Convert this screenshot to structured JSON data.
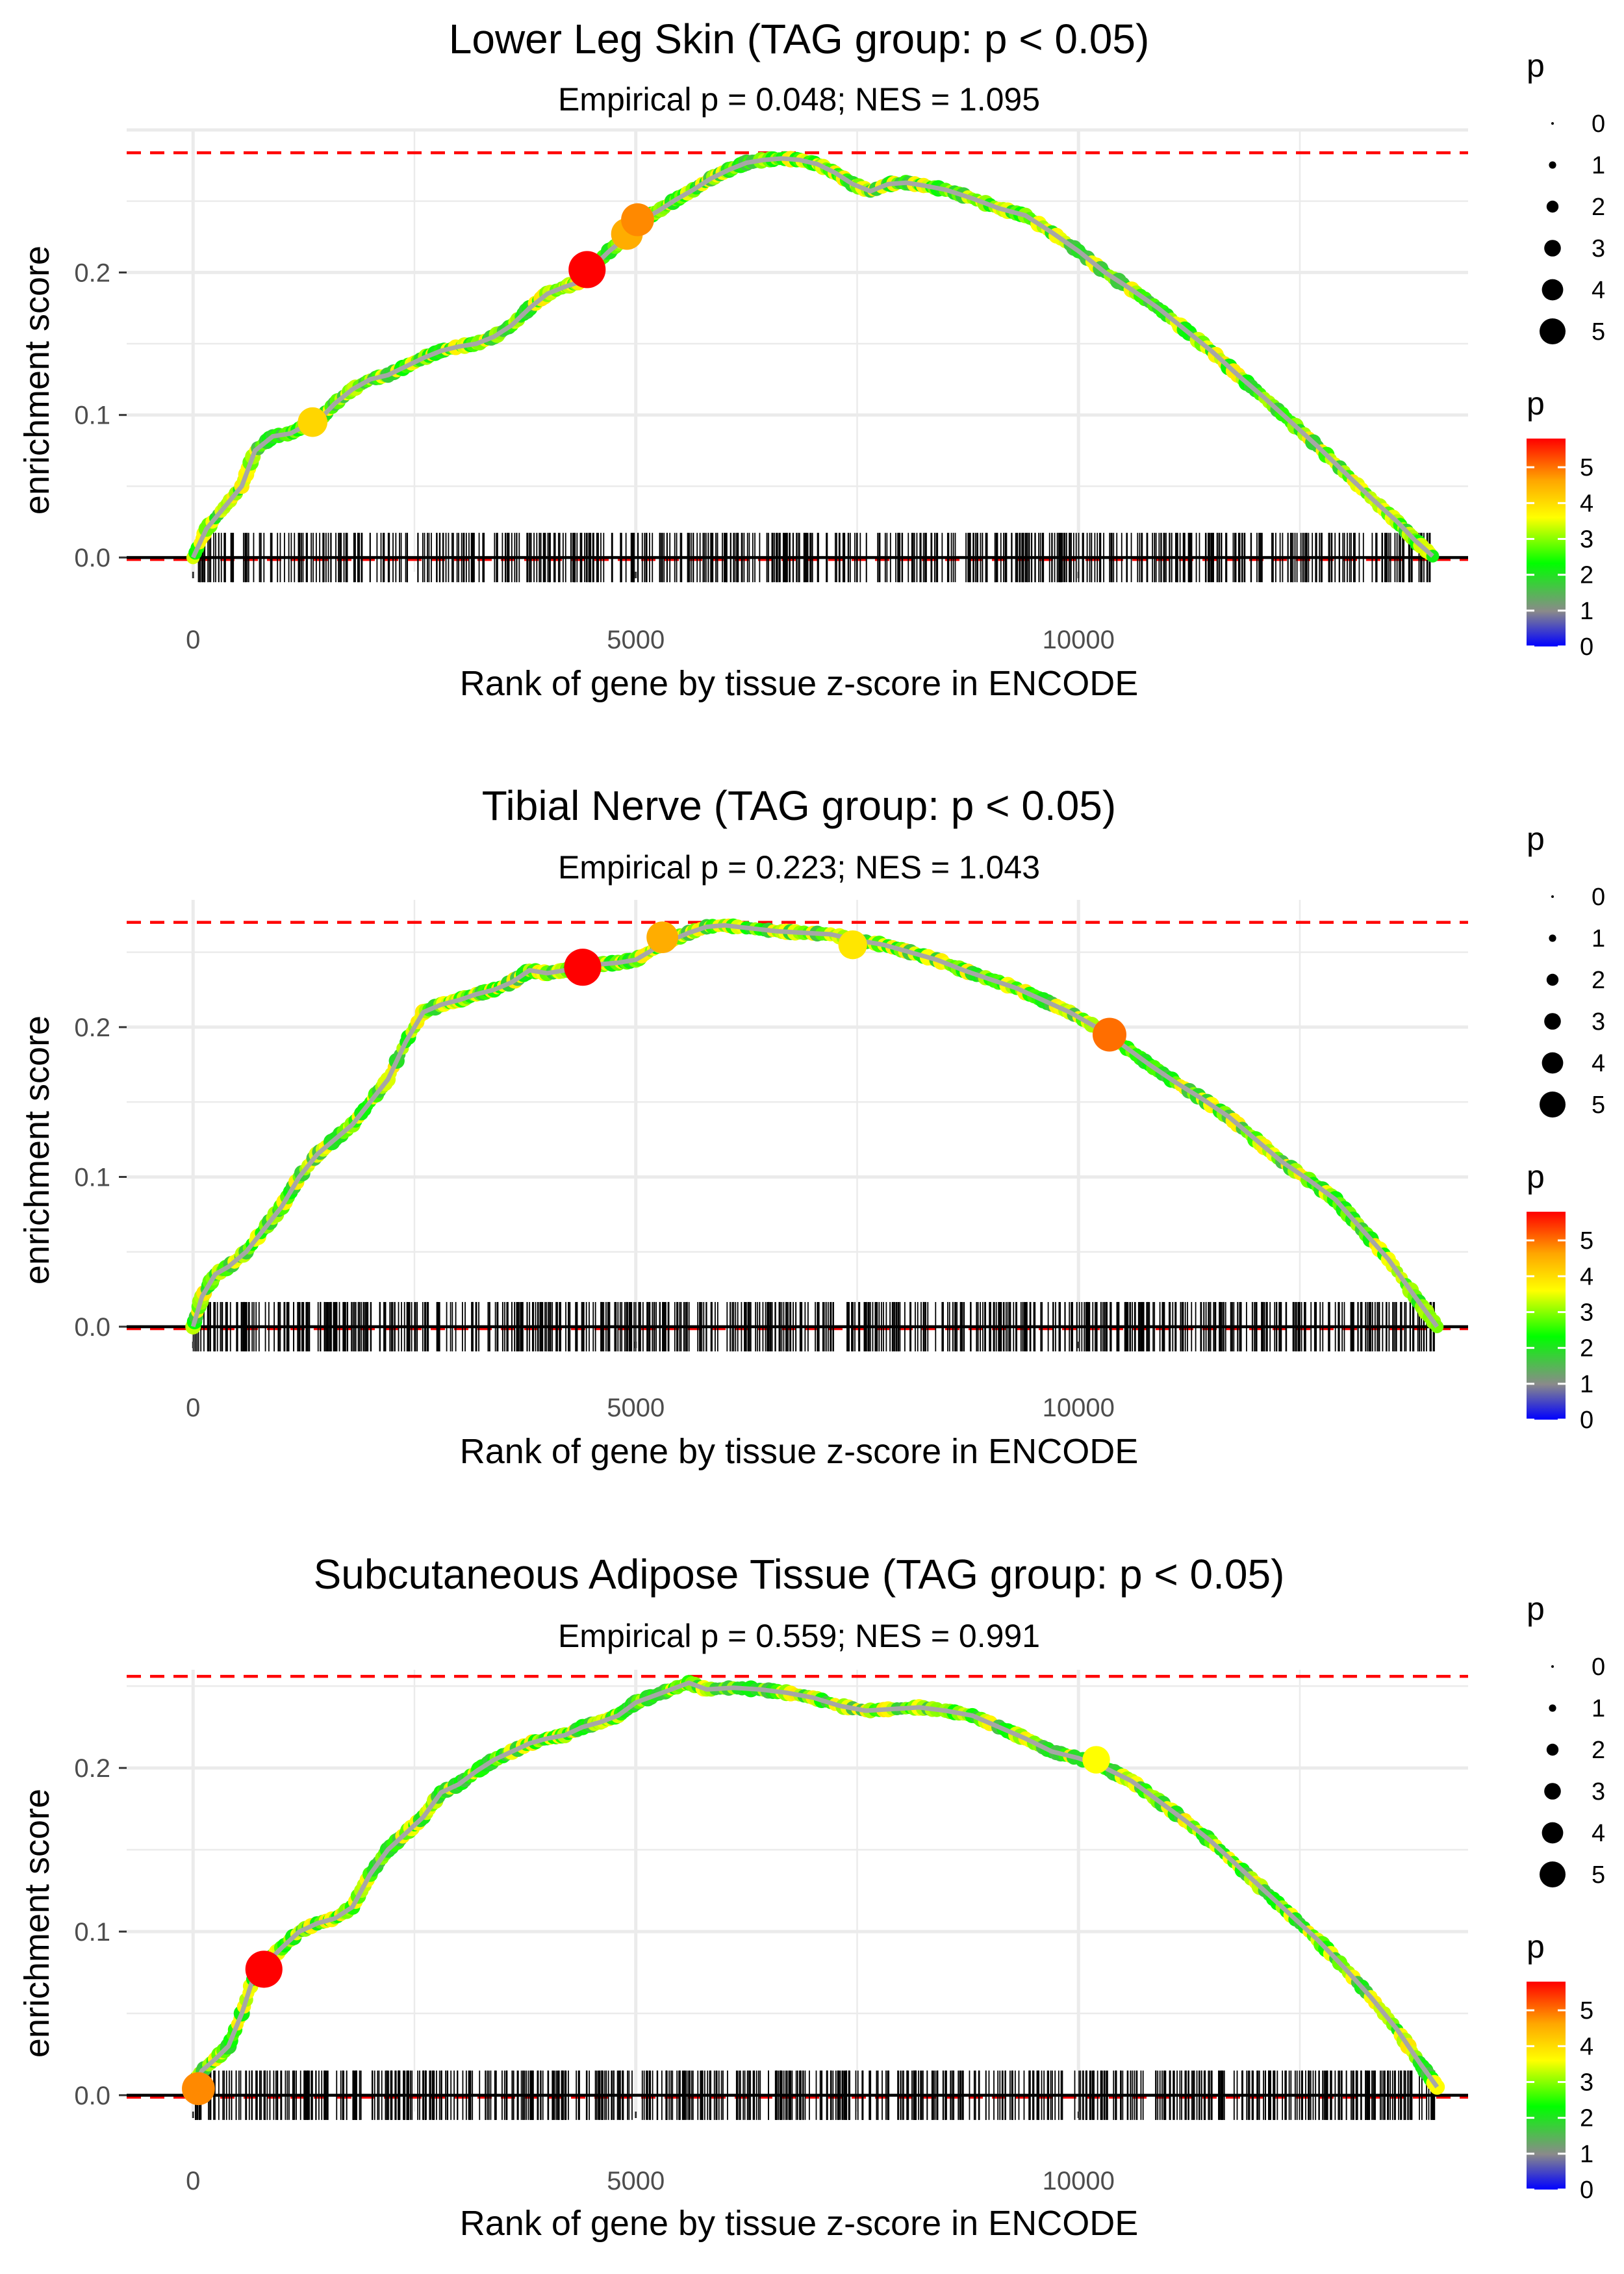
{
  "figure": {
    "xlabel": "Rank of gene by tissue z-score in ENCODE",
    "ylabel": "enrichment score",
    "xlim": [
      -750,
      14400
    ],
    "x_ticks": [
      0,
      5000,
      10000
    ],
    "y_ticks": [
      0.0,
      0.1,
      0.2
    ],
    "y_tick_labels": [
      "0.0",
      "0.1",
      "0.2"
    ],
    "colors": {
      "max_line": "#ff0000",
      "zero_line": "#000000",
      "grid": "#ebebeb",
      "curve_core": "#a6a6a6",
      "gene_ticks": "#000000"
    },
    "gradient_stops": [
      "#0000ff",
      "#8a8a8a",
      "#00ff00",
      "#ffff00",
      "#ffa500",
      "#ff0000"
    ]
  },
  "legend": {
    "size_title": "p",
    "size_levels": [
      "0",
      "1",
      "2",
      "3",
      "4",
      "5"
    ],
    "color_title": "p",
    "color_levels": [
      "5",
      "4",
      "3",
      "2",
      "1",
      "0"
    ]
  },
  "chart_data": [
    {
      "type": "line",
      "title": "Lower Leg Skin (TAG group: p < 0.05)",
      "subtitle": "Empirical p = 0.048; NES = 1.095",
      "ylim": [
        -0.01,
        0.3
      ],
      "max_es": 0.284,
      "x_end": 14000,
      "curve": {
        "x": [
          0,
          150,
          350,
          550,
          700,
          900,
          1100,
          1250,
          1400,
          1600,
          1800,
          2000,
          2200,
          2400,
          2600,
          2800,
          3000,
          3200,
          3400,
          3600,
          3800,
          4000,
          4200,
          4350,
          4500,
          4700,
          4900,
          5050,
          5250,
          5450,
          5650,
          5850,
          6050,
          6250,
          6450,
          6650,
          6850,
          7050,
          7250,
          7450,
          7650,
          7850,
          8050,
          8250,
          8500,
          8800,
          9100,
          9400,
          9700,
          10000,
          10300,
          10600,
          10900,
          11200,
          11500,
          11800,
          12100,
          12400,
          12700,
          13000,
          13300,
          13600,
          13800,
          14000
        ],
        "y": [
          0.0,
          0.02,
          0.035,
          0.05,
          0.075,
          0.085,
          0.087,
          0.092,
          0.095,
          0.108,
          0.118,
          0.125,
          0.128,
          0.134,
          0.14,
          0.145,
          0.148,
          0.15,
          0.155,
          0.163,
          0.175,
          0.185,
          0.19,
          0.193,
          0.203,
          0.215,
          0.225,
          0.236,
          0.243,
          0.251,
          0.258,
          0.266,
          0.272,
          0.277,
          0.279,
          0.28,
          0.279,
          0.276,
          0.27,
          0.262,
          0.257,
          0.262,
          0.263,
          0.261,
          0.258,
          0.252,
          0.245,
          0.24,
          0.228,
          0.215,
          0.2,
          0.188,
          0.175,
          0.16,
          0.145,
          0.128,
          0.112,
          0.095,
          0.078,
          0.06,
          0.042,
          0.025,
          0.012,
          0.001
        ]
      },
      "highlight_points": [
        {
          "x": 1350,
          "y": 0.095,
          "p": 4.0
        },
        {
          "x": 4450,
          "y": 0.202,
          "p": 5.8
        },
        {
          "x": 4900,
          "y": 0.227,
          "p": 4.5
        },
        {
          "x": 5020,
          "y": 0.237,
          "p": 4.8
        }
      ],
      "tick_density": [
        [
          0,
          14000,
          650
        ]
      ]
    },
    {
      "type": "line",
      "title": "Tibial Nerve (TAG group: p < 0.05)",
      "subtitle": "Empirical p = 0.223; NES = 1.043",
      "ylim": [
        -0.01,
        0.285
      ],
      "max_es": 0.27,
      "x_end": 14050,
      "curve": {
        "x": [
          0,
          100,
          250,
          400,
          600,
          800,
          1000,
          1200,
          1400,
          1600,
          1800,
          2000,
          2200,
          2400,
          2600,
          2800,
          3000,
          3200,
          3400,
          3600,
          3800,
          4000,
          4200,
          4400,
          4600,
          4800,
          5000,
          5200,
          5400,
          5600,
          5800,
          6000,
          6300,
          6600,
          6900,
          7200,
          7500,
          7800,
          8100,
          8400,
          8700,
          9000,
          9300,
          9600,
          9900,
          10200,
          10500,
          10800,
          11100,
          11400,
          11700,
          12000,
          12300,
          12600,
          12900,
          13200,
          13500,
          13800,
          14050
        ],
        "y": [
          0.0,
          0.02,
          0.035,
          0.04,
          0.05,
          0.065,
          0.08,
          0.1,
          0.115,
          0.125,
          0.135,
          0.15,
          0.165,
          0.19,
          0.21,
          0.215,
          0.218,
          0.222,
          0.225,
          0.23,
          0.238,
          0.236,
          0.238,
          0.24,
          0.242,
          0.243,
          0.245,
          0.252,
          0.258,
          0.263,
          0.267,
          0.268,
          0.266,
          0.264,
          0.263,
          0.262,
          0.258,
          0.255,
          0.25,
          0.245,
          0.238,
          0.232,
          0.226,
          0.218,
          0.21,
          0.2,
          0.188,
          0.175,
          0.163,
          0.152,
          0.14,
          0.125,
          0.11,
          0.098,
          0.085,
          0.065,
          0.045,
          0.02,
          0.0
        ]
      },
      "highlight_points": [
        {
          "x": 4400,
          "y": 0.24,
          "p": 5.8
        },
        {
          "x": 5300,
          "y": 0.26,
          "p": 4.5
        },
        {
          "x": 7450,
          "y": 0.255,
          "p": 3.8
        },
        {
          "x": 10350,
          "y": 0.195,
          "p": 5.0
        }
      ],
      "tick_density": [
        [
          0,
          14050,
          700
        ]
      ]
    },
    {
      "type": "line",
      "title": "Subcutaneous Adipose Tissue (TAG group: p < 0.05)",
      "subtitle": "Empirical p = 0.559; NES = 0.991",
      "ylim": [
        -0.01,
        0.26
      ],
      "max_es": 0.256,
      "x_end": 14050,
      "curve": {
        "x": [
          0,
          100,
          250,
          400,
          550,
          700,
          850,
          1000,
          1200,
          1400,
          1600,
          1800,
          2000,
          2200,
          2400,
          2600,
          2800,
          3000,
          3200,
          3400,
          3600,
          3800,
          4000,
          4200,
          4400,
          4600,
          4800,
          5000,
          5200,
          5400,
          5600,
          5800,
          6100,
          6400,
          6700,
          7000,
          7300,
          7600,
          7900,
          8200,
          8500,
          8800,
          9100,
          9400,
          9700,
          10000,
          10300,
          10600,
          10900,
          11200,
          11500,
          11800,
          12100,
          12400,
          12700,
          13000,
          13300,
          13600,
          13850,
          14050
        ],
        "y": [
          0.005,
          0.015,
          0.022,
          0.03,
          0.05,
          0.075,
          0.082,
          0.09,
          0.1,
          0.105,
          0.108,
          0.115,
          0.135,
          0.15,
          0.16,
          0.17,
          0.185,
          0.19,
          0.198,
          0.205,
          0.21,
          0.215,
          0.218,
          0.22,
          0.225,
          0.228,
          0.232,
          0.24,
          0.244,
          0.248,
          0.252,
          0.248,
          0.249,
          0.248,
          0.246,
          0.243,
          0.238,
          0.235,
          0.236,
          0.237,
          0.235,
          0.232,
          0.225,
          0.218,
          0.21,
          0.206,
          0.2,
          0.192,
          0.18,
          0.168,
          0.155,
          0.14,
          0.125,
          0.11,
          0.095,
          0.078,
          0.06,
          0.04,
          0.02,
          0.005
        ]
      },
      "highlight_points": [
        {
          "x": 60,
          "y": 0.004,
          "p": 4.8
        },
        {
          "x": 800,
          "y": 0.077,
          "p": 5.8
        },
        {
          "x": 10200,
          "y": 0.205,
          "p": 3.5
        }
      ],
      "tick_density": [
        [
          0,
          14050,
          680
        ]
      ]
    }
  ]
}
